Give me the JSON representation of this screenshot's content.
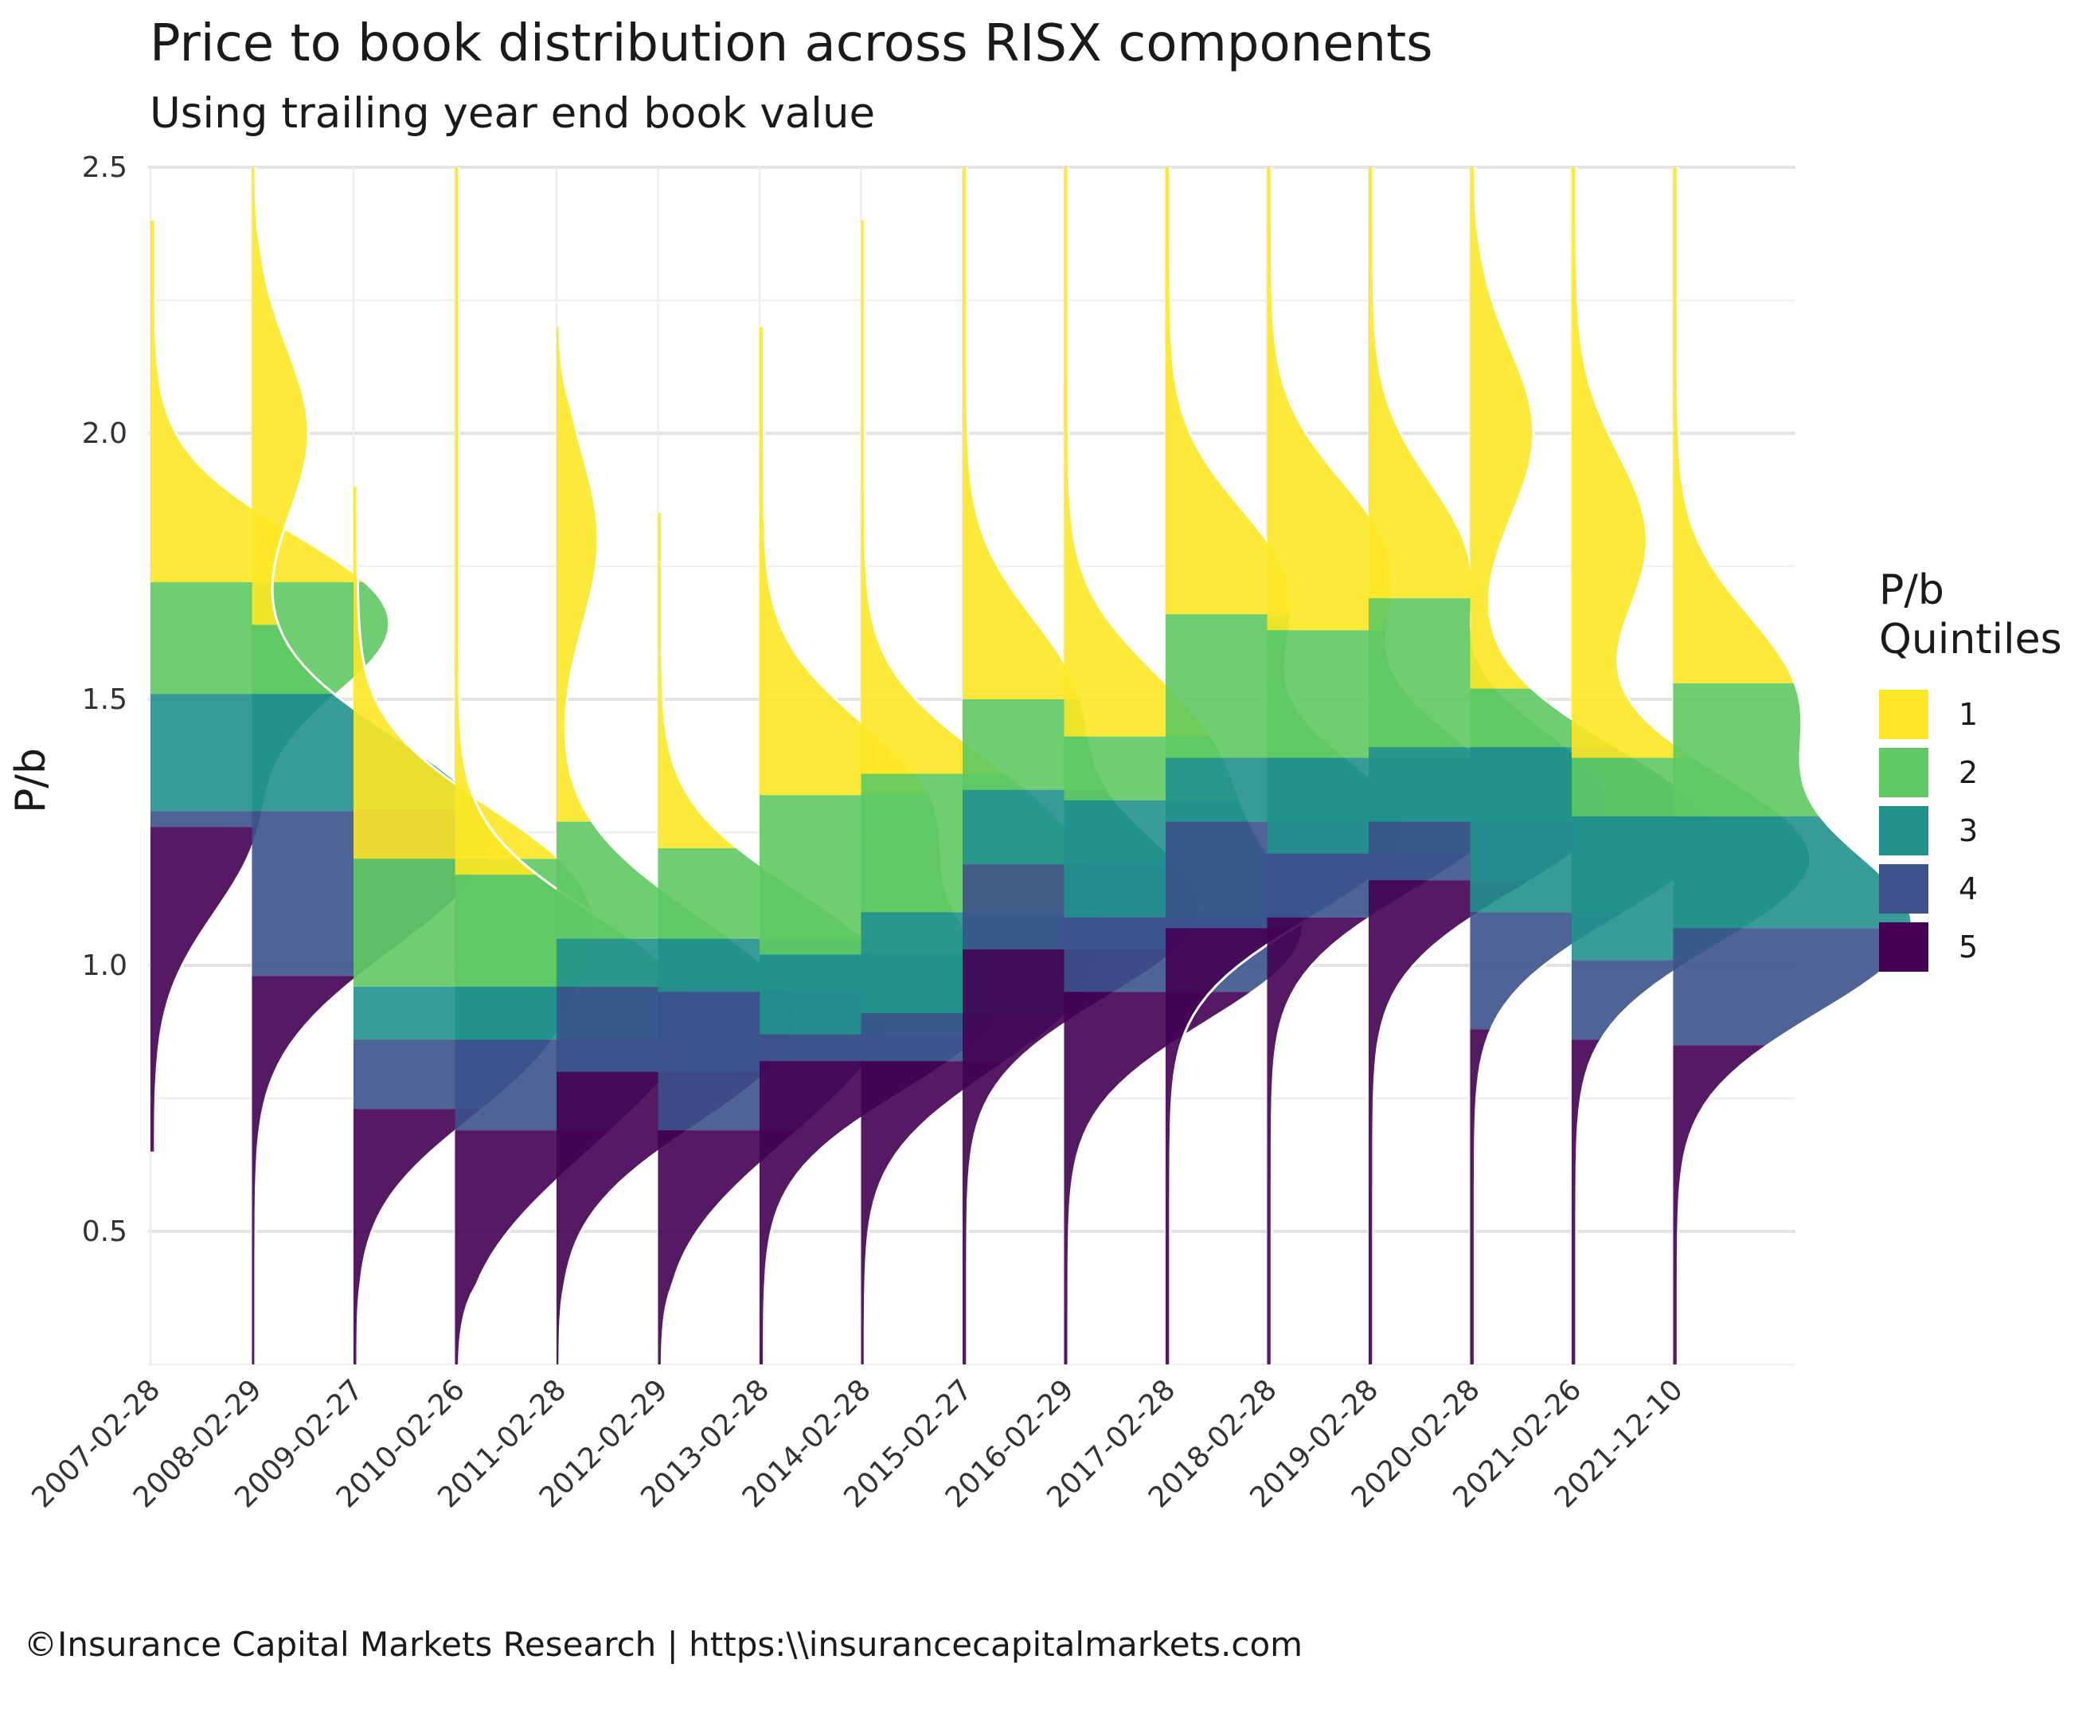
{
  "chart_data": {
    "type": "ridgeline",
    "title": "Price to book distribution across RISX components",
    "subtitle": "Using trailing year end book value",
    "ylabel": "P/b",
    "ylim": [
      0.25,
      2.5
    ],
    "yticks": [
      0.5,
      1.0,
      1.5,
      2.0,
      2.5
    ],
    "ytick_labels": [
      "0.5",
      "1.0",
      "1.5",
      "2.0",
      "2.5"
    ],
    "grid": true,
    "legend": {
      "title_line1": "P/b",
      "title_line2": "Quintiles",
      "placement": "right",
      "entries": [
        {
          "label": "1",
          "color": "#FDE725"
        },
        {
          "label": "2",
          "color": "#5EC962"
        },
        {
          "label": "3",
          "color": "#21918C"
        },
        {
          "label": "4",
          "color": "#3B528B"
        },
        {
          "label": "5",
          "color": "#440154"
        }
      ]
    },
    "caption": "©Insurance Capital Markets Research | https:\\\\insurancecapitalmarkets.com",
    "dates": [
      {
        "label": "2007-02-28",
        "min": 0.65,
        "max": 2.4,
        "q": [
          1.72,
          1.51,
          1.29,
          1.26
        ],
        "peaks": [
          [
            1.65,
            1.0
          ],
          [
            1.25,
            0.4
          ]
        ]
      },
      {
        "label": "2008-02-29",
        "min": 0.25,
        "max": 2.5,
        "q": [
          1.64,
          1.51,
          1.29,
          0.98
        ],
        "peaks": [
          [
            1.3,
            1.0
          ],
          [
            2.0,
            0.3
          ],
          [
            1.1,
            0.6
          ]
        ]
      },
      {
        "label": "2009-02-27",
        "min": 0.25,
        "max": 1.9,
        "q": [
          1.2,
          0.96,
          0.86,
          0.73
        ],
        "peaks": [
          [
            1.15,
            1.0
          ],
          [
            0.85,
            0.8
          ]
        ]
      },
      {
        "label": "2010-02-26",
        "min": 0.25,
        "max": 2.5,
        "q": [
          1.17,
          0.96,
          0.86,
          0.69
        ],
        "peaks": [
          [
            0.95,
            1.0
          ],
          [
            0.7,
            0.5
          ]
        ]
      },
      {
        "label": "2011-02-28",
        "min": 0.25,
        "max": 2.2,
        "q": [
          1.27,
          1.05,
          0.96,
          0.8
        ],
        "peaks": [
          [
            0.82,
            1.0
          ],
          [
            1.0,
            0.8
          ],
          [
            1.8,
            0.25
          ]
        ]
      },
      {
        "label": "2012-02-29",
        "min": 0.25,
        "max": 1.85,
        "q": [
          1.22,
          1.05,
          0.95,
          0.69
        ],
        "peaks": [
          [
            1.0,
            1.0
          ],
          [
            0.75,
            0.6
          ]
        ]
      },
      {
        "label": "2013-02-28",
        "min": 0.25,
        "max": 2.2,
        "q": [
          1.32,
          1.02,
          0.87,
          0.82
        ],
        "peaks": [
          [
            0.92,
            1.0
          ],
          [
            1.3,
            0.7
          ]
        ]
      },
      {
        "label": "2014-02-28",
        "min": 0.25,
        "max": 2.4,
        "q": [
          1.36,
          1.1,
          0.91,
          0.82
        ],
        "peaks": [
          [
            0.95,
            1.0
          ],
          [
            1.25,
            0.9
          ]
        ]
      },
      {
        "label": "2015-02-27",
        "min": 0.25,
        "max": 2.5,
        "q": [
          1.5,
          1.33,
          1.19,
          1.03
        ],
        "peaks": [
          [
            1.1,
            1.0
          ],
          [
            1.5,
            0.45
          ]
        ]
      },
      {
        "label": "2016-02-29",
        "min": 0.25,
        "max": 2.5,
        "q": [
          1.43,
          1.31,
          1.09,
          0.95
        ],
        "peaks": [
          [
            1.05,
            1.0
          ],
          [
            1.4,
            0.6
          ]
        ]
      },
      {
        "label": "2017-02-28",
        "min": 0.25,
        "max": 2.5,
        "q": [
          1.66,
          1.39,
          1.27,
          1.07
        ],
        "peaks": [
          [
            1.25,
            1.0
          ],
          [
            1.7,
            0.5
          ]
        ]
      },
      {
        "label": "2018-02-28",
        "min": 0.25,
        "max": 2.5,
        "q": [
          1.63,
          1.39,
          1.21,
          1.09
        ],
        "peaks": [
          [
            1.3,
            1.0
          ],
          [
            1.75,
            0.5
          ]
        ]
      },
      {
        "label": "2019-02-28",
        "min": 0.25,
        "max": 2.5,
        "q": [
          1.69,
          1.41,
          1.27,
          1.16
        ],
        "peaks": [
          [
            1.3,
            1.0
          ],
          [
            1.75,
            0.4
          ]
        ]
      },
      {
        "label": "2020-02-28",
        "min": 0.25,
        "max": 2.5,
        "q": [
          1.52,
          1.41,
          1.1,
          0.88
        ],
        "peaks": [
          [
            1.25,
            1.0
          ],
          [
            2.0,
            0.25
          ]
        ]
      },
      {
        "label": "2021-02-26",
        "min": 0.25,
        "max": 2.5,
        "q": [
          1.39,
          1.28,
          1.01,
          0.86
        ],
        "peaks": [
          [
            1.2,
            1.0
          ],
          [
            1.8,
            0.3
          ]
        ]
      },
      {
        "label": "2021-12-10",
        "min": 0.25,
        "max": 2.5,
        "q": [
          1.53,
          1.28,
          1.07,
          0.85
        ],
        "peaks": [
          [
            1.07,
            1.0
          ],
          [
            1.5,
            0.5
          ]
        ]
      }
    ]
  }
}
